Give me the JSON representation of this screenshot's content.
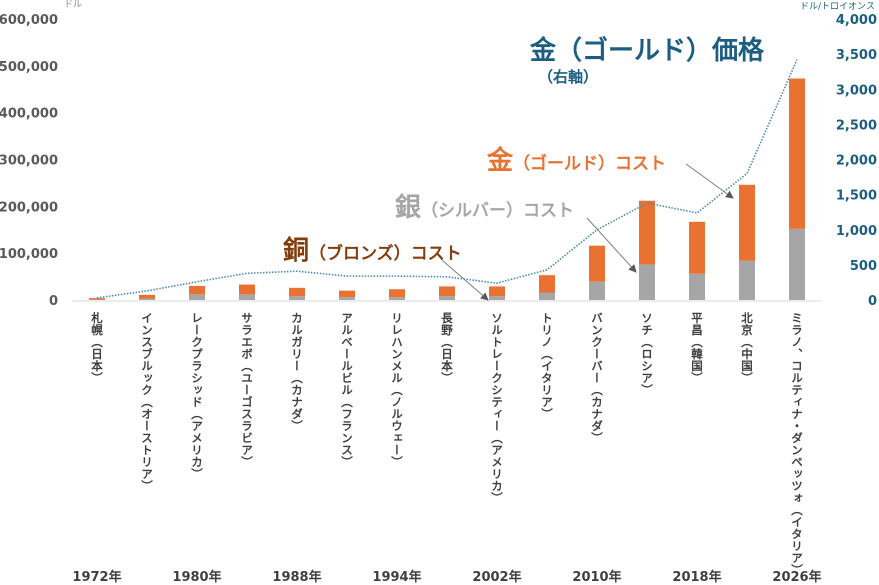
{
  "chart_data": {
    "type": "bar",
    "stacked": true,
    "categories": [
      "札幌（日本）",
      "インスブルック（オーストリア）",
      "レークプラシッド（アメリカ）",
      "サラエボ（ユーゴスラビア）",
      "カルガリー（カナダ）",
      "アルベールビル（フランス）",
      "リレハンメル（ノルウェー）",
      "長野（日本）",
      "ソルトレークシティー（アメリカ）",
      "トリノ（イタリア）",
      "バンクーバー（カナダ）",
      "ソチ（ロシア）",
      "平昌（韓国）",
      "北京（中国）",
      "ミラノ、コルティナ・ダンペッツォ（イタリア）"
    ],
    "year_labels": [
      {
        "label": "1972年",
        "category_index": 0
      },
      {
        "label": "1980年",
        "category_index": 2
      },
      {
        "label": "1988年",
        "category_index": 4
      },
      {
        "label": "1994年",
        "category_index": 6
      },
      {
        "label": "2002年",
        "category_index": 8
      },
      {
        "label": "2010年",
        "category_index": 10
      },
      {
        "label": "2018年",
        "category_index": 12
      },
      {
        "label": "2026年",
        "category_index": 14
      }
    ],
    "left_axis": {
      "unit": "ドル",
      "ylim": [
        0,
        600000
      ],
      "ticks": [
        "0",
        "100,000",
        "200,000",
        "300,000",
        "400,000",
        "500,000",
        "600,000"
      ]
    },
    "right_axis": {
      "unit": "ドル/トロイオンス",
      "ylim": [
        0,
        4000
      ],
      "ticks": [
        "0",
        "500",
        "1,000",
        "1,500",
        "2,000",
        "2,500",
        "3,000",
        "3,500",
        "4,000"
      ]
    },
    "series": [
      {
        "name": "銀（シルバー）コスト",
        "kind": "bar",
        "axis": "left",
        "color": "#A6A6A6",
        "values": [
          1000,
          3000,
          12000,
          12000,
          8000,
          6000,
          6000,
          8000,
          8000,
          16000,
          39000,
          76000,
          56000,
          84000,
          152000
        ]
      },
      {
        "name": "金（ゴールド）コスト",
        "kind": "bar",
        "axis": "left",
        "color": "#E97132",
        "values": [
          3000,
          8000,
          18000,
          21000,
          18000,
          14000,
          17000,
          21000,
          21000,
          37000,
          77000,
          136000,
          111000,
          162000,
          321000
        ]
      },
      {
        "name": "金（ゴールド）価格",
        "kind": "line",
        "axis": "right",
        "color": "#4A8BAA",
        "style": "dotted",
        "values": [
          30,
          130,
          260,
          380,
          410,
          340,
          340,
          330,
          240,
          430,
          1000,
          1380,
          1240,
          1800,
          3420
        ]
      }
    ],
    "grid": false,
    "annotations": {
      "gold_price": {
        "main": "金（ゴールド）価格",
        "sub": "（右軸）",
        "color": "#1B5E80"
      },
      "gold_cost": {
        "kanji": "金",
        "rest": "（ゴールド）コスト",
        "color": "#E97132"
      },
      "silver_cost": {
        "kanji": "銀",
        "rest": "（シルバー）コスト",
        "color": "#A6A6A6"
      },
      "bronze_cost": {
        "kanji": "銅",
        "rest": "（ブロンズ）コスト",
        "color": "#843C0C"
      }
    }
  }
}
